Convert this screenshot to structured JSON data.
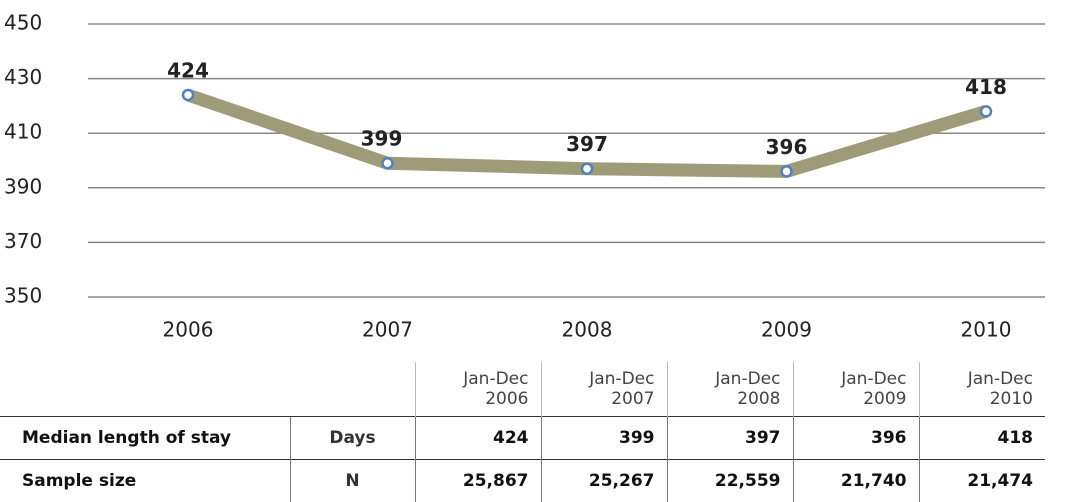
{
  "chart_data": {
    "type": "line",
    "categories": [
      "2006",
      "2007",
      "2008",
      "2009",
      "2010"
    ],
    "values": [
      424,
      399,
      397,
      396,
      418
    ],
    "color": "#9e9b78",
    "marker_color": "#4f81bd",
    "ylim": [
      350,
      450
    ],
    "yticks": [
      350,
      370,
      390,
      410,
      430,
      450
    ],
    "grid": true
  },
  "table": {
    "columns": [
      [
        "Jan-Dec",
        "2006"
      ],
      [
        "Jan-Dec",
        "2007"
      ],
      [
        "Jan-Dec",
        "2008"
      ],
      [
        "Jan-Dec",
        "2009"
      ],
      [
        "Jan-Dec",
        "2010"
      ]
    ],
    "rows": [
      {
        "label": "Median length of stay",
        "unit": "Days",
        "values": [
          "424",
          "399",
          "397",
          "396",
          "418"
        ]
      },
      {
        "label": "Sample size",
        "unit": "N",
        "values": [
          "25,867",
          "25,267",
          "22,559",
          "21,740",
          "21,474"
        ]
      }
    ]
  }
}
